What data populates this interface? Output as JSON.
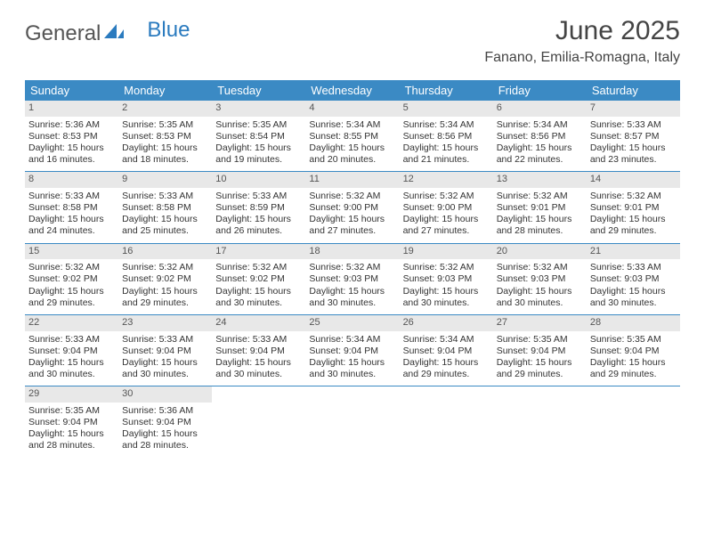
{
  "logo": {
    "part1": "General",
    "part2": "Blue"
  },
  "title": "June 2025",
  "location": "Fanano, Emilia-Romagna, Italy",
  "colors": {
    "header_bg": "#3b8ac4",
    "header_text": "#ffffff",
    "daynum_bg": "#e8e8e8",
    "text": "#333333",
    "rule": "#3b8ac4"
  },
  "day_names": [
    "Sunday",
    "Monday",
    "Tuesday",
    "Wednesday",
    "Thursday",
    "Friday",
    "Saturday"
  ],
  "weeks": [
    [
      {
        "n": "1",
        "sr": "Sunrise: 5:36 AM",
        "ss": "Sunset: 8:53 PM",
        "dl": "Daylight: 15 hours and 16 minutes."
      },
      {
        "n": "2",
        "sr": "Sunrise: 5:35 AM",
        "ss": "Sunset: 8:53 PM",
        "dl": "Daylight: 15 hours and 18 minutes."
      },
      {
        "n": "3",
        "sr": "Sunrise: 5:35 AM",
        "ss": "Sunset: 8:54 PM",
        "dl": "Daylight: 15 hours and 19 minutes."
      },
      {
        "n": "4",
        "sr": "Sunrise: 5:34 AM",
        "ss": "Sunset: 8:55 PM",
        "dl": "Daylight: 15 hours and 20 minutes."
      },
      {
        "n": "5",
        "sr": "Sunrise: 5:34 AM",
        "ss": "Sunset: 8:56 PM",
        "dl": "Daylight: 15 hours and 21 minutes."
      },
      {
        "n": "6",
        "sr": "Sunrise: 5:34 AM",
        "ss": "Sunset: 8:56 PM",
        "dl": "Daylight: 15 hours and 22 minutes."
      },
      {
        "n": "7",
        "sr": "Sunrise: 5:33 AM",
        "ss": "Sunset: 8:57 PM",
        "dl": "Daylight: 15 hours and 23 minutes."
      }
    ],
    [
      {
        "n": "8",
        "sr": "Sunrise: 5:33 AM",
        "ss": "Sunset: 8:58 PM",
        "dl": "Daylight: 15 hours and 24 minutes."
      },
      {
        "n": "9",
        "sr": "Sunrise: 5:33 AM",
        "ss": "Sunset: 8:58 PM",
        "dl": "Daylight: 15 hours and 25 minutes."
      },
      {
        "n": "10",
        "sr": "Sunrise: 5:33 AM",
        "ss": "Sunset: 8:59 PM",
        "dl": "Daylight: 15 hours and 26 minutes."
      },
      {
        "n": "11",
        "sr": "Sunrise: 5:32 AM",
        "ss": "Sunset: 9:00 PM",
        "dl": "Daylight: 15 hours and 27 minutes."
      },
      {
        "n": "12",
        "sr": "Sunrise: 5:32 AM",
        "ss": "Sunset: 9:00 PM",
        "dl": "Daylight: 15 hours and 27 minutes."
      },
      {
        "n": "13",
        "sr": "Sunrise: 5:32 AM",
        "ss": "Sunset: 9:01 PM",
        "dl": "Daylight: 15 hours and 28 minutes."
      },
      {
        "n": "14",
        "sr": "Sunrise: 5:32 AM",
        "ss": "Sunset: 9:01 PM",
        "dl": "Daylight: 15 hours and 29 minutes."
      }
    ],
    [
      {
        "n": "15",
        "sr": "Sunrise: 5:32 AM",
        "ss": "Sunset: 9:02 PM",
        "dl": "Daylight: 15 hours and 29 minutes."
      },
      {
        "n": "16",
        "sr": "Sunrise: 5:32 AM",
        "ss": "Sunset: 9:02 PM",
        "dl": "Daylight: 15 hours and 29 minutes."
      },
      {
        "n": "17",
        "sr": "Sunrise: 5:32 AM",
        "ss": "Sunset: 9:02 PM",
        "dl": "Daylight: 15 hours and 30 minutes."
      },
      {
        "n": "18",
        "sr": "Sunrise: 5:32 AM",
        "ss": "Sunset: 9:03 PM",
        "dl": "Daylight: 15 hours and 30 minutes."
      },
      {
        "n": "19",
        "sr": "Sunrise: 5:32 AM",
        "ss": "Sunset: 9:03 PM",
        "dl": "Daylight: 15 hours and 30 minutes."
      },
      {
        "n": "20",
        "sr": "Sunrise: 5:32 AM",
        "ss": "Sunset: 9:03 PM",
        "dl": "Daylight: 15 hours and 30 minutes."
      },
      {
        "n": "21",
        "sr": "Sunrise: 5:33 AM",
        "ss": "Sunset: 9:03 PM",
        "dl": "Daylight: 15 hours and 30 minutes."
      }
    ],
    [
      {
        "n": "22",
        "sr": "Sunrise: 5:33 AM",
        "ss": "Sunset: 9:04 PM",
        "dl": "Daylight: 15 hours and 30 minutes."
      },
      {
        "n": "23",
        "sr": "Sunrise: 5:33 AM",
        "ss": "Sunset: 9:04 PM",
        "dl": "Daylight: 15 hours and 30 minutes."
      },
      {
        "n": "24",
        "sr": "Sunrise: 5:33 AM",
        "ss": "Sunset: 9:04 PM",
        "dl": "Daylight: 15 hours and 30 minutes."
      },
      {
        "n": "25",
        "sr": "Sunrise: 5:34 AM",
        "ss": "Sunset: 9:04 PM",
        "dl": "Daylight: 15 hours and 30 minutes."
      },
      {
        "n": "26",
        "sr": "Sunrise: 5:34 AM",
        "ss": "Sunset: 9:04 PM",
        "dl": "Daylight: 15 hours and 29 minutes."
      },
      {
        "n": "27",
        "sr": "Sunrise: 5:35 AM",
        "ss": "Sunset: 9:04 PM",
        "dl": "Daylight: 15 hours and 29 minutes."
      },
      {
        "n": "28",
        "sr": "Sunrise: 5:35 AM",
        "ss": "Sunset: 9:04 PM",
        "dl": "Daylight: 15 hours and 29 minutes."
      }
    ],
    [
      {
        "n": "29",
        "sr": "Sunrise: 5:35 AM",
        "ss": "Sunset: 9:04 PM",
        "dl": "Daylight: 15 hours and 28 minutes."
      },
      {
        "n": "30",
        "sr": "Sunrise: 5:36 AM",
        "ss": "Sunset: 9:04 PM",
        "dl": "Daylight: 15 hours and 28 minutes."
      },
      null,
      null,
      null,
      null,
      null
    ]
  ]
}
